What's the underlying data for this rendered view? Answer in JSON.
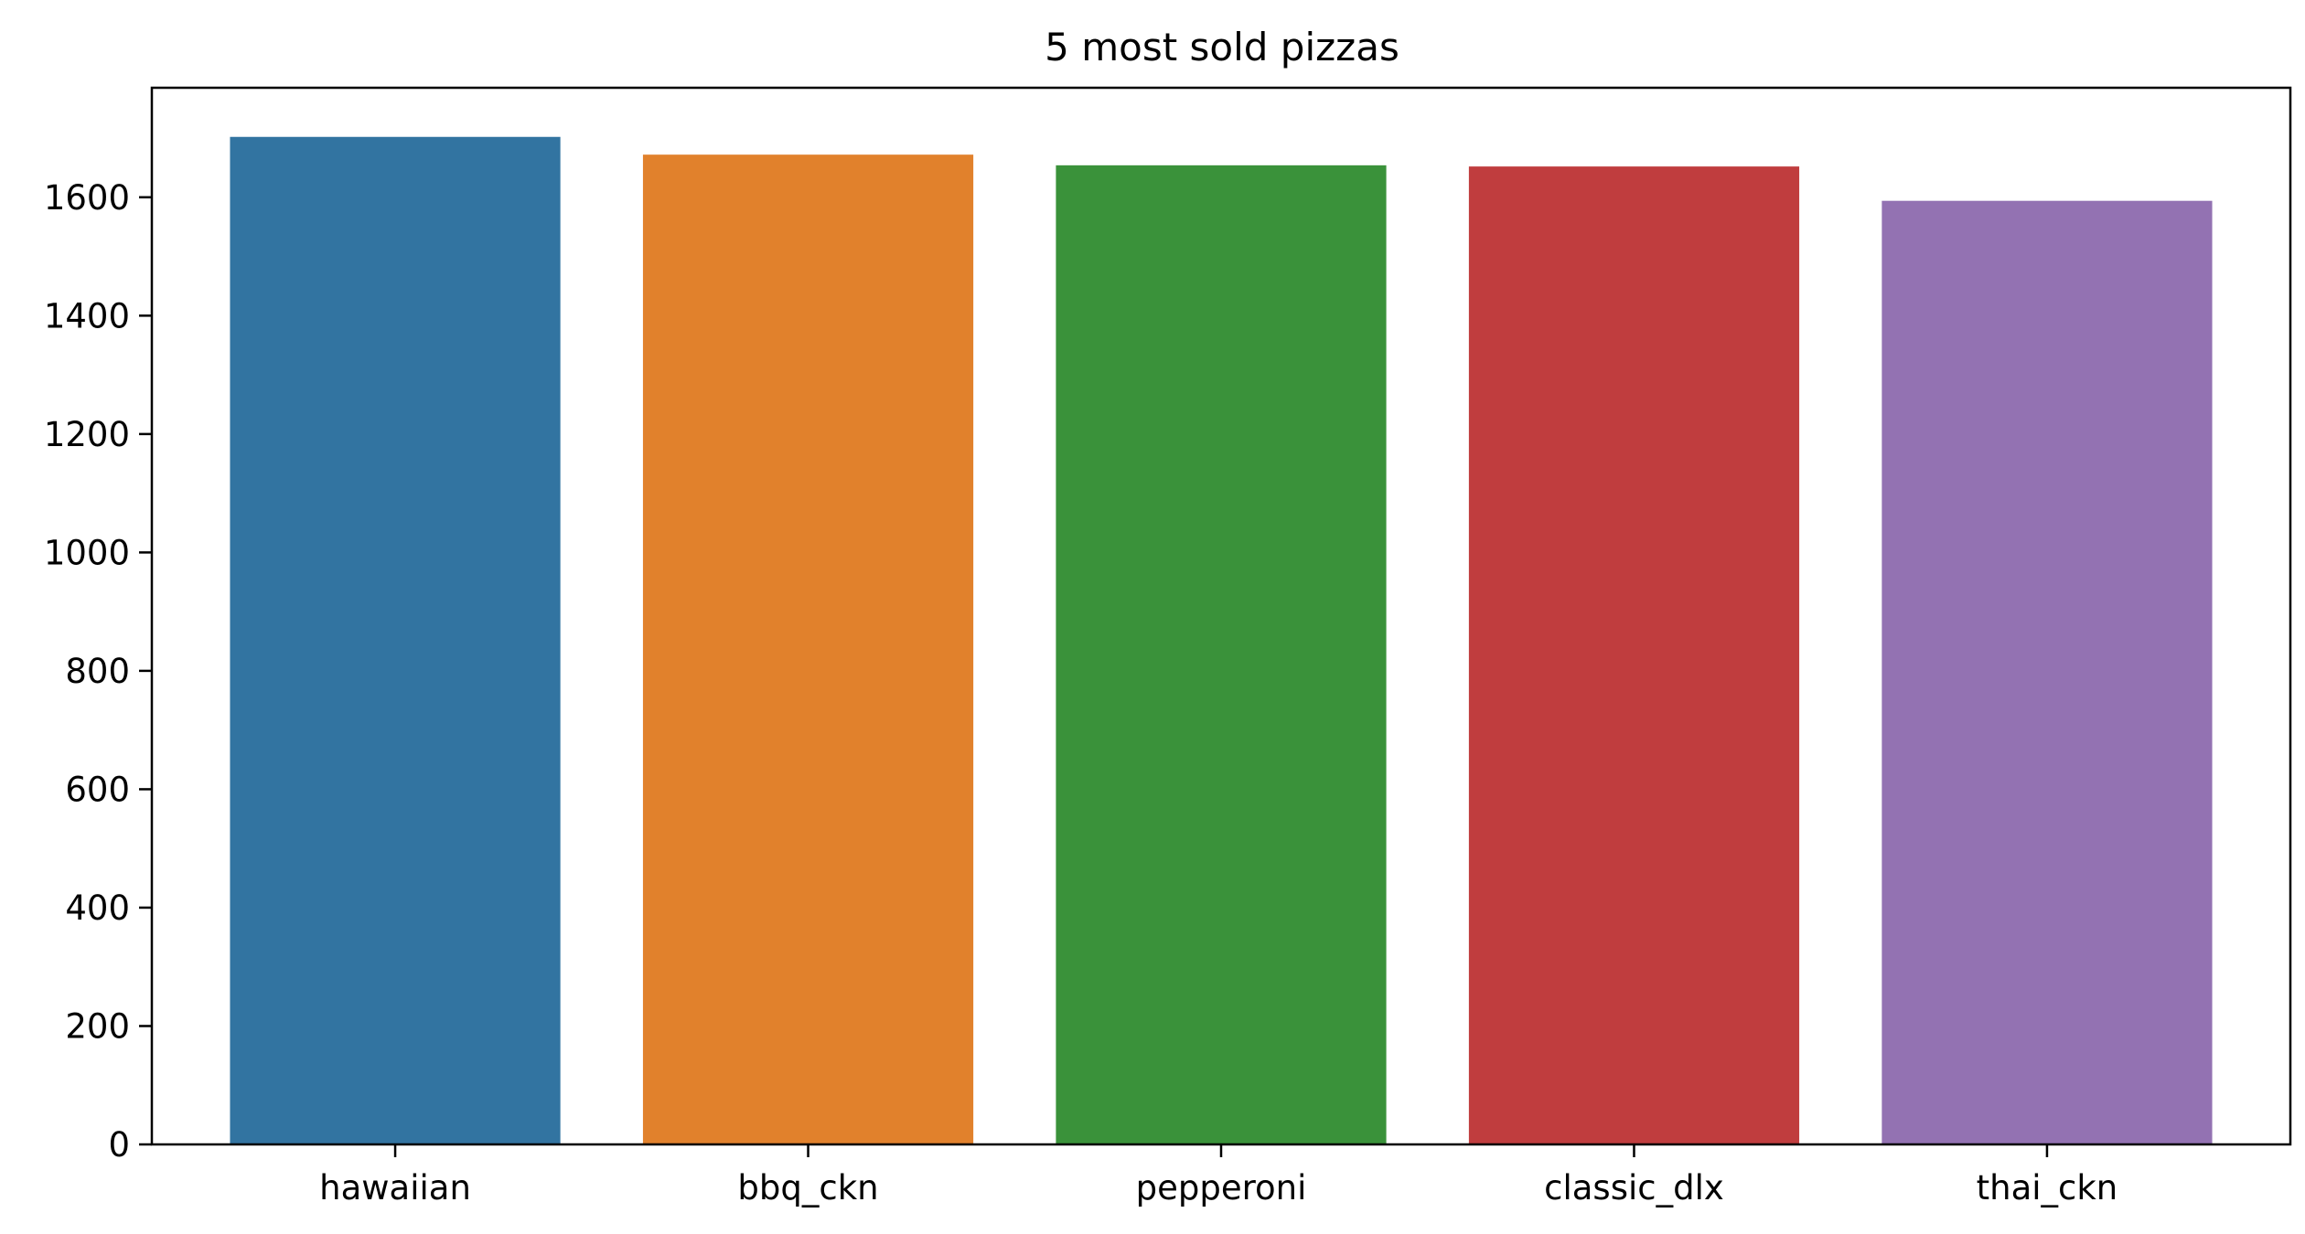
{
  "chart_data": {
    "type": "bar",
    "title": "5 most sold pizzas",
    "xlabel": "",
    "ylabel": "",
    "categories": [
      "hawaiian",
      "bbq_ckn",
      "pepperoni",
      "classic_dlx",
      "thai_ckn"
    ],
    "values": [
      1702,
      1672,
      1654,
      1652,
      1594
    ],
    "colors": [
      "#3274a1",
      "#e1812c",
      "#3a923a",
      "#c03d3e",
      "#9372b2"
    ],
    "ylim": [
      0,
      1785
    ],
    "yticks": [
      0,
      200,
      400,
      600,
      800,
      1000,
      1200,
      1400,
      1600
    ],
    "grid": false,
    "legend": "none"
  }
}
